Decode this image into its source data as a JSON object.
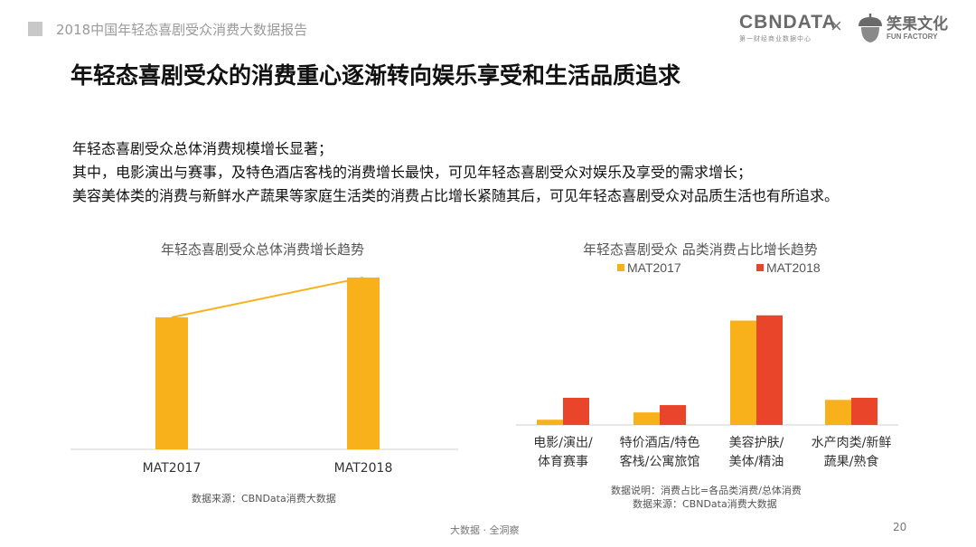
{
  "header": {
    "report_title": "2018中国年轻态喜剧受众消费大数据报告",
    "logo_cbndata": "CBNDATA",
    "logo_cbndata_sub": "第一财经商业数据中心",
    "logo_separator": "×",
    "logo_funfactory_cn": "笑果文化",
    "logo_funfactory_en": "FUN FACTORY"
  },
  "main_title": "年轻态喜剧受众的消费重心逐渐转向娱乐享受和生活品质追求",
  "summary": [
    "年轻态喜剧受众总体消费规模增长显著；",
    "其中，电影演出与赛事，及特色酒店客栈的消费增长最快，可见年轻态喜剧受众对娱乐及享受的需求增长；",
    "美容美体类的消费与新鲜水产蔬果等家庭生活类的消费占比增长紧随其后，可见年轻态喜剧受众对品质生活也有所追求。"
  ],
  "colors": {
    "mat2017": "#F9B11B",
    "mat2018": "#E8452A",
    "trend_line": "#F9B11B",
    "axis": "#d0d0d0"
  },
  "chart_data": [
    {
      "type": "bar",
      "title": "年轻态喜剧受众总体消费增长趋势",
      "categories": [
        "MAT2017",
        "MAT2018"
      ],
      "values": [
        0.73,
        0.95
      ],
      "trend_line": true,
      "ylim": [
        0,
        1
      ],
      "grid": false,
      "source": "数据来源：CBNData消费大数据"
    },
    {
      "type": "bar",
      "title": "年轻态喜剧受众 品类消费占比增长趋势",
      "categories": [
        "电影/演出/\n体育赛事",
        "特价酒店/特色\n客栈/公寓旅馆",
        "美容护肤/\n美体/精油",
        "水产肉类/新鲜\n蔬果/熟食"
      ],
      "series": [
        {
          "name": "MAT2017",
          "values": [
            0.05,
            0.12,
            1.0,
            0.24
          ]
        },
        {
          "name": "MAT2018",
          "values": [
            0.26,
            0.19,
            1.05,
            0.26
          ]
        }
      ],
      "ylim": [
        0,
        1.1
      ],
      "legend_position": "top",
      "grid": false,
      "note": "数据说明：消费占比=各品类消费/总体消费",
      "source": "数据来源：CBNData消费大数据"
    }
  ],
  "footer": {
    "text": "大数据 · 全洞察",
    "page_number": "20"
  }
}
